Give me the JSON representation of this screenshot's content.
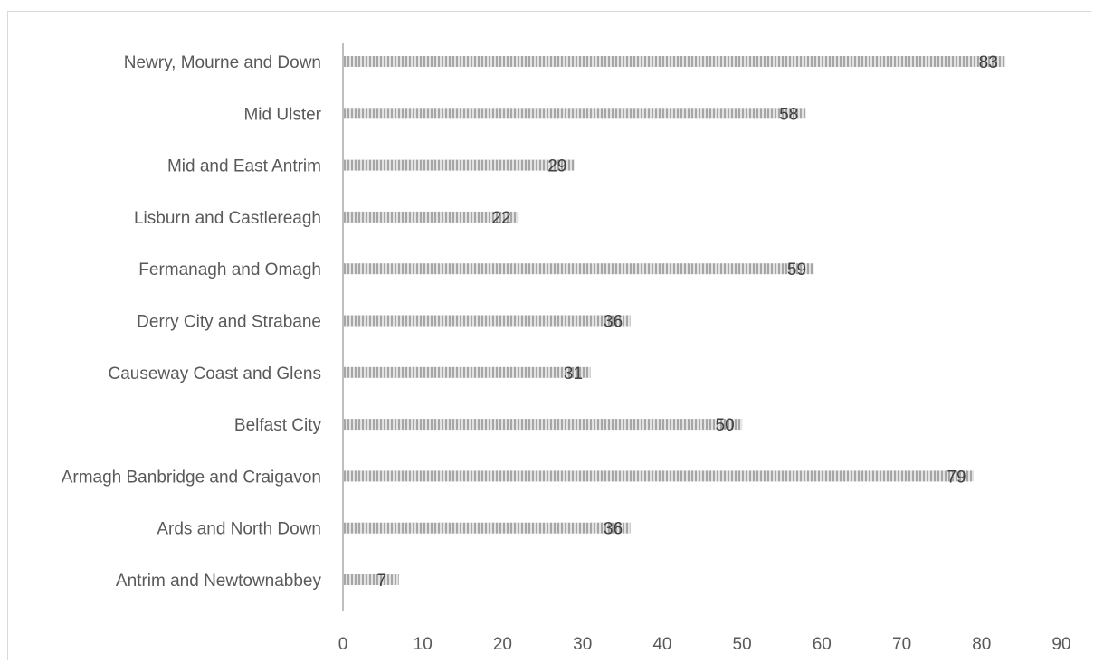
{
  "chart_data": {
    "type": "bar",
    "orientation": "horizontal",
    "title": "",
    "xlabel": "",
    "ylabel": "",
    "categories": [
      "Antrim and Newtownabbey",
      "Ards and North Down",
      "Armagh Banbridge and Craigavon",
      "Belfast City",
      "Causeway Coast and Glens",
      "Derry City and Strabane",
      "Fermanagh and Omagh",
      "Lisburn and Castlereagh",
      "Mid and East Antrim",
      "Mid Ulster",
      "Newry, Mourne and Down"
    ],
    "values": [
      7,
      36,
      79,
      50,
      31,
      36,
      59,
      22,
      29,
      58,
      83
    ],
    "xlim": [
      0,
      90
    ],
    "x_ticks": [
      0,
      10,
      20,
      30,
      40,
      50,
      60,
      70,
      80,
      90
    ],
    "grid": false,
    "legend": "none",
    "data_labels": true,
    "bar_pattern": "vertical-stripes",
    "colors": {
      "bar_stripe_dark": "#a6a6a6",
      "bar_stripe_light": "#e3e3e3",
      "axis": "#bfbfbf",
      "text": "#595959",
      "data_label": "#404040"
    }
  }
}
